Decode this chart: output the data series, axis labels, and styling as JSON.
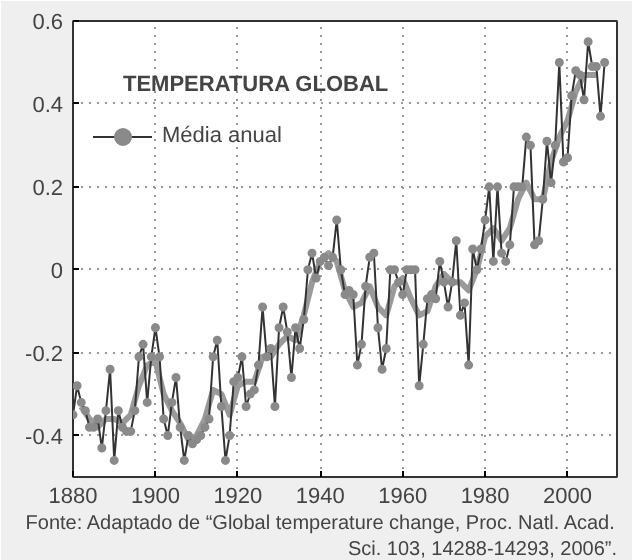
{
  "chart_data": {
    "type": "line",
    "title": "TEMPERATURA GLOBAL",
    "annotations": [
      "Fonte: Adaptado de “Global temperature change, Proc. Natl. Acad.",
      "Sci. 103, 14288-14293, 2006”."
    ],
    "x": [
      1880,
      1881,
      1882,
      1883,
      1884,
      1885,
      1886,
      1887,
      1888,
      1889,
      1890,
      1891,
      1892,
      1893,
      1894,
      1895,
      1896,
      1897,
      1898,
      1899,
      1900,
      1901,
      1902,
      1903,
      1904,
      1905,
      1906,
      1907,
      1908,
      1909,
      1910,
      1911,
      1912,
      1913,
      1914,
      1915,
      1916,
      1917,
      1918,
      1919,
      1920,
      1921,
      1922,
      1923,
      1924,
      1925,
      1926,
      1927,
      1928,
      1929,
      1930,
      1931,
      1932,
      1933,
      1934,
      1935,
      1936,
      1937,
      1938,
      1939,
      1940,
      1941,
      1942,
      1943,
      1944,
      1945,
      1946,
      1947,
      1948,
      1949,
      1950,
      1951,
      1952,
      1953,
      1954,
      1955,
      1956,
      1957,
      1958,
      1959,
      1960,
      1961,
      1962,
      1963,
      1964,
      1965,
      1966,
      1967,
      1968,
      1969,
      1970,
      1971,
      1972,
      1973,
      1974,
      1975,
      1976,
      1977,
      1978,
      1979,
      1980,
      1981,
      1982,
      1983,
      1984,
      1985,
      1986,
      1987,
      1988,
      1989,
      1990,
      1991,
      1992,
      1993,
      1994,
      1995,
      1996,
      1997,
      1998,
      1999,
      2000,
      2001,
      2002,
      2003,
      2004,
      2005,
      2006,
      2007,
      2008,
      2009
    ],
    "series": [
      {
        "name": "Média anual",
        "color": "#8a8a8a",
        "marker": "circle",
        "values": [
          -0.35,
          -0.28,
          -0.32,
          -0.34,
          -0.38,
          -0.38,
          -0.36,
          -0.43,
          -0.34,
          -0.24,
          -0.46,
          -0.34,
          -0.38,
          -0.39,
          -0.39,
          -0.34,
          -0.21,
          -0.18,
          -0.32,
          -0.21,
          -0.14,
          -0.21,
          -0.36,
          -0.4,
          -0.32,
          -0.26,
          -0.38,
          -0.46,
          -0.4,
          -0.42,
          -0.41,
          -0.4,
          -0.38,
          -0.36,
          -0.21,
          -0.17,
          -0.33,
          -0.46,
          -0.4,
          -0.27,
          -0.26,
          -0.21,
          -0.33,
          -0.3,
          -0.29,
          -0.23,
          -0.09,
          -0.21,
          -0.19,
          -0.33,
          -0.14,
          -0.09,
          -0.15,
          -0.26,
          -0.14,
          -0.19,
          -0.12,
          0.0,
          0.04,
          -0.02,
          0.02,
          0.03,
          0.01,
          0.03,
          0.12,
          0.0,
          -0.06,
          -0.05,
          -0.06,
          -0.23,
          -0.18,
          -0.04,
          0.03,
          0.04,
          -0.14,
          -0.24,
          -0.19,
          0.0,
          0.0,
          -0.03,
          -0.06,
          0.0,
          0.0,
          0.0,
          -0.28,
          -0.18,
          -0.07,
          -0.06,
          -0.07,
          0.02,
          -0.03,
          -0.09,
          -0.03,
          0.07,
          -0.11,
          -0.08,
          -0.23,
          0.05,
          0.0,
          0.05,
          0.12,
          0.2,
          0.02,
          0.2,
          0.04,
          0.02,
          0.06,
          0.2,
          0.2,
          0.2,
          0.32,
          0.3,
          0.06,
          0.07,
          0.17,
          0.31,
          0.21,
          0.3,
          0.5,
          0.26,
          0.27,
          0.42,
          0.48,
          0.47,
          0.41,
          0.55,
          0.49,
          0.49,
          0.37,
          0.5
        ]
      },
      {
        "color": "#9a9a9a",
        "marker": "none",
        "x": [
          1882,
          1884,
          1886,
          1888,
          1890,
          1892,
          1894,
          1896,
          1898,
          1900,
          1902,
          1904,
          1906,
          1908,
          1910,
          1912,
          1914,
          1916,
          1918,
          1920,
          1922,
          1924,
          1926,
          1928,
          1930,
          1932,
          1934,
          1936,
          1938,
          1940,
          1942,
          1944,
          1946,
          1948,
          1950,
          1952,
          1954,
          1956,
          1958,
          1960,
          1962,
          1964,
          1966,
          1968,
          1970,
          1972,
          1974,
          1976,
          1978,
          1980,
          1982,
          1984,
          1986,
          1988,
          1990,
          1992,
          1994,
          1996,
          1998,
          2000,
          2002,
          2004,
          2006,
          2007
        ],
        "values": [
          -0.33,
          -0.36,
          -0.38,
          -0.36,
          -0.36,
          -0.37,
          -0.35,
          -0.28,
          -0.23,
          -0.22,
          -0.3,
          -0.34,
          -0.37,
          -0.41,
          -0.4,
          -0.36,
          -0.29,
          -0.3,
          -0.35,
          -0.28,
          -0.27,
          -0.27,
          -0.21,
          -0.21,
          -0.18,
          -0.16,
          -0.17,
          -0.11,
          -0.03,
          0.02,
          0.04,
          0.02,
          -0.05,
          -0.09,
          -0.08,
          -0.04,
          -0.09,
          -0.11,
          -0.04,
          -0.02,
          -0.07,
          -0.11,
          -0.1,
          -0.04,
          -0.01,
          -0.03,
          -0.03,
          -0.05,
          0.0,
          0.08,
          0.1,
          0.07,
          0.1,
          0.17,
          0.21,
          0.17,
          0.17,
          0.26,
          0.32,
          0.36,
          0.43,
          0.47,
          0.47,
          0.47
        ]
      }
    ],
    "xlim": [
      1880,
      2012
    ],
    "ylim": [
      -0.5,
      0.6
    ],
    "xticks": [
      1880,
      1900,
      1920,
      1940,
      1960,
      1980,
      2000
    ],
    "yticks": [
      -0.4,
      -0.2,
      0,
      0.2,
      0.4,
      0.6
    ],
    "grid": true,
    "legend": "top left",
    "line_style": "solid"
  }
}
